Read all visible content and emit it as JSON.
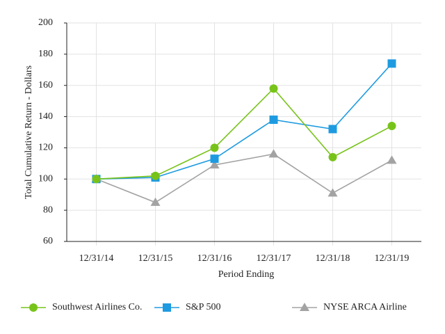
{
  "chart_data": {
    "type": "line",
    "x_label": "Period Ending",
    "y_label": "Total Cumulative Return - Dollars",
    "categories": [
      "12/31/14",
      "12/31/15",
      "12/31/16",
      "12/31/17",
      "12/31/18",
      "12/31/19"
    ],
    "series": [
      {
        "name": "Southwest Airlines Co.",
        "color": "#78c31a",
        "marker": "circle",
        "values": [
          100,
          102,
          120,
          158,
          114,
          134
        ]
      },
      {
        "name": "S&P 500",
        "color": "#1e9be0",
        "marker": "square",
        "values": [
          100,
          101,
          113,
          138,
          132,
          174
        ]
      },
      {
        "name": "NYSE ARCA Airline",
        "color": "#a3a3a3",
        "marker": "triangle",
        "values": [
          100,
          85,
          109,
          116,
          91,
          112
        ]
      }
    ],
    "ylim": [
      60,
      200
    ],
    "yticks": [
      60,
      80,
      100,
      120,
      140,
      160,
      180,
      200
    ],
    "grid": true,
    "legend": "bottom"
  }
}
